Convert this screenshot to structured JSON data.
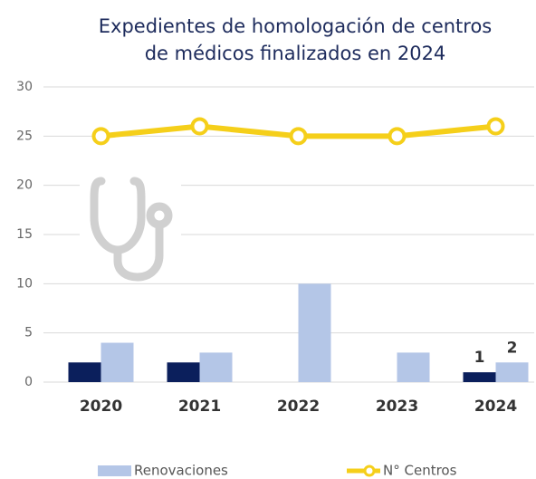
{
  "chart_data": {
    "type": "bar",
    "title": [
      "Expedientes de homologación de centros",
      "de médicos finalizados en 2024"
    ],
    "categories": [
      "2020",
      "2021",
      "2022",
      "2023",
      "2024"
    ],
    "series": [
      {
        "color": "#0b1f5c",
        "values": [
          2,
          2,
          0,
          0,
          1
        ],
        "value_labels": [
          null,
          null,
          null,
          null,
          "1"
        ]
      },
      {
        "name": "Renovaciones",
        "color": "#b4c6e7",
        "values": [
          4,
          3,
          10,
          3,
          2
        ],
        "value_labels": [
          null,
          null,
          null,
          null,
          "2"
        ]
      },
      {
        "name": "N° Centros",
        "type": "line",
        "color": "#f5cf1a",
        "values": [
          25,
          26,
          25,
          25,
          26
        ]
      }
    ],
    "ylim": [
      0,
      30
    ],
    "yticks": [
      0,
      5,
      10,
      15,
      20,
      25,
      30
    ],
    "grid": true,
    "legend": "bottom"
  }
}
